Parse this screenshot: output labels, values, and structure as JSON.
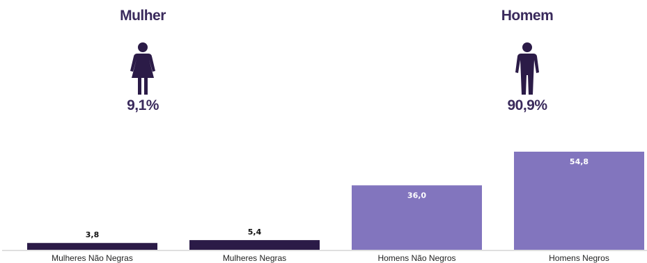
{
  "genders": {
    "female": {
      "title": "Mulher",
      "pct": "9,1%",
      "icon": "woman-icon"
    },
    "male": {
      "title": "Homem",
      "pct": "90,9%",
      "icon": "man-icon"
    }
  },
  "colors": {
    "dark": "#2b1b47",
    "light": "#8275be",
    "title": "#3a2a5c",
    "icon": "#2b1b47"
  },
  "chart_data": {
    "type": "bar",
    "categories": [
      "Mulheres Não Negras",
      "Mulheres Negras",
      "Homens Não Negros",
      "Homens Negros"
    ],
    "values": [
      3.8,
      5.4,
      36.0,
      54.8
    ],
    "value_labels": [
      "3,8",
      "5,4",
      "36,0",
      "54,8"
    ],
    "bar_colors": [
      "#2b1b47",
      "#2b1b47",
      "#8275be",
      "#8275be"
    ],
    "label_position": [
      "above",
      "above",
      "inside",
      "inside"
    ],
    "title": "",
    "xlabel": "",
    "ylabel": "",
    "ylim": [
      0,
      54.8
    ],
    "grid": false,
    "legend": "none"
  }
}
